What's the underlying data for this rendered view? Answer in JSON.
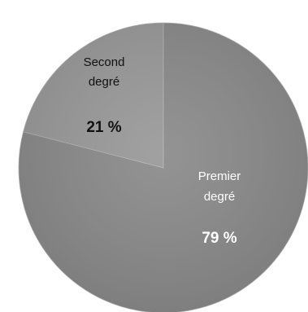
{
  "chart_data": {
    "type": "pie",
    "title": "",
    "slices": [
      {
        "label_line1": "Premier",
        "label_line2": "degré",
        "value": 79,
        "value_label": "79 %",
        "color": "#8a8a8a",
        "label_color": "#ffffff"
      },
      {
        "label_line1": "Second",
        "label_line2": "degré",
        "value": 21,
        "value_label": "21 %",
        "color": "#999999",
        "label_color": "#111111"
      }
    ],
    "start_angle_deg": 0,
    "direction": "clockwise"
  }
}
